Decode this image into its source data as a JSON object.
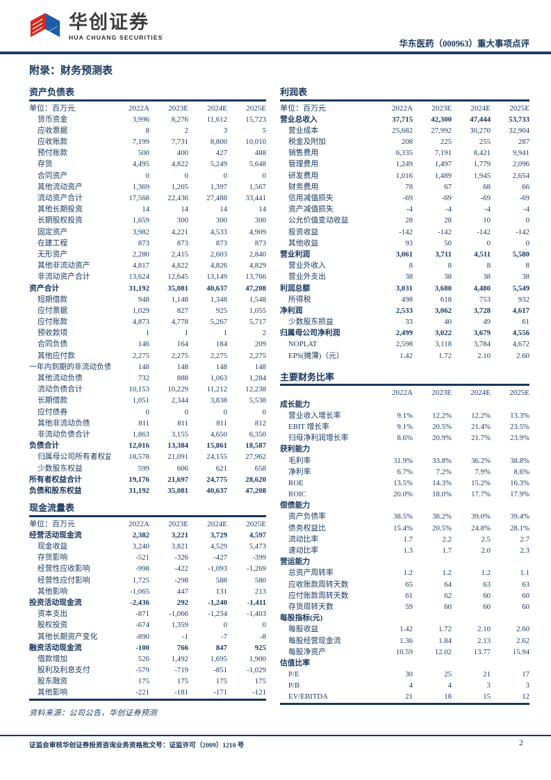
{
  "header": {
    "logo_cn": "华创证券",
    "logo_en": "HUA CHUANG SECURITIES",
    "report_title": "华东医药（000963）重大事项点评"
  },
  "page_title": "附录：财务预测表",
  "colors": {
    "navy": "#17365D",
    "logo_red": "#D7281E",
    "logo_blue": "#1C5CA8"
  },
  "tables": {
    "balance_sheet": {
      "title": "资产负债表",
      "unit_label": "单位：百万元",
      "columns": [
        "2022A",
        "2023E",
        "2024E",
        "2025E"
      ],
      "rows": [
        {
          "label": "货币资金",
          "values": [
            "3,996",
            "8,276",
            "11,612",
            "15,723"
          ]
        },
        {
          "label": "应收票据",
          "values": [
            "8",
            "2",
            "3",
            "5"
          ]
        },
        {
          "label": "应收账款",
          "values": [
            "7,199",
            "7,731",
            "8,800",
            "10,010"
          ]
        },
        {
          "label": "预付账款",
          "values": [
            "500",
            "400",
            "427",
            "488"
          ]
        },
        {
          "label": "存货",
          "values": [
            "4,495",
            "4,822",
            "5,249",
            "5,648"
          ]
        },
        {
          "label": "合同资产",
          "values": [
            "0",
            "0",
            "0",
            "0"
          ]
        },
        {
          "label": "其他流动资产",
          "values": [
            "1,369",
            "1,205",
            "1,397",
            "1,567"
          ]
        },
        {
          "label": "流动资产合计",
          "values": [
            "17,568",
            "22,436",
            "27,488",
            "33,441"
          ]
        },
        {
          "label": "其他长期投资",
          "values": [
            "14",
            "14",
            "14",
            "14"
          ]
        },
        {
          "label": "长期股权投资",
          "values": [
            "1,659",
            "300",
            "300",
            "300"
          ]
        },
        {
          "label": "固定资产",
          "values": [
            "3,982",
            "4,221",
            "4,533",
            "4,909"
          ]
        },
        {
          "label": "在建工程",
          "values": [
            "873",
            "873",
            "873",
            "873"
          ]
        },
        {
          "label": "无形资产",
          "values": [
            "2,280",
            "2,415",
            "2,603",
            "2,840"
          ]
        },
        {
          "label": "其他非流动资产",
          "values": [
            "4,817",
            "4,822",
            "4,826",
            "4,829"
          ]
        },
        {
          "label": "非流动资产合计",
          "values": [
            "13,624",
            "12,645",
            "13,149",
            "13,766"
          ]
        },
        {
          "label": "资产合计",
          "bold": true,
          "flush": true,
          "values": [
            "31,192",
            "35,081",
            "40,637",
            "47,208"
          ]
        },
        {
          "label": "短期借款",
          "values": [
            "948",
            "1,148",
            "1,348",
            "1,548"
          ]
        },
        {
          "label": "应付票据",
          "values": [
            "1,029",
            "827",
            "925",
            "1,055"
          ]
        },
        {
          "label": "应付账款",
          "values": [
            "4,873",
            "4,778",
            "5,267",
            "5,717"
          ]
        },
        {
          "label": "预收款项",
          "values": [
            "1",
            "1",
            "1",
            "2"
          ]
        },
        {
          "label": "合同负债",
          "values": [
            "146",
            "164",
            "184",
            "209"
          ]
        },
        {
          "label": "其他应付款",
          "values": [
            "2,275",
            "2,275",
            "2,275",
            "2,275"
          ]
        },
        {
          "label": "一年内到期的非流动负债",
          "flush": true,
          "values": [
            "148",
            "148",
            "148",
            "148"
          ]
        },
        {
          "label": "其他流动负债",
          "values": [
            "732",
            "888",
            "1,063",
            "1,284"
          ]
        },
        {
          "label": "流动负债合计",
          "values": [
            "10,153",
            "10,229",
            "11,212",
            "12,238"
          ]
        },
        {
          "label": "长期借款",
          "values": [
            "1,051",
            "2,344",
            "3,838",
            "5,538"
          ]
        },
        {
          "label": "应付债券",
          "values": [
            "0",
            "0",
            "0",
            "0"
          ]
        },
        {
          "label": "其他非流动负债",
          "values": [
            "811",
            "811",
            "811",
            "812"
          ]
        },
        {
          "label": "非流动负债合计",
          "values": [
            "1,863",
            "3,155",
            "4,650",
            "6,350"
          ]
        },
        {
          "label": "负债合计",
          "bold": true,
          "flush": true,
          "values": [
            "12,016",
            "13,384",
            "15,861",
            "18,587"
          ]
        },
        {
          "label": "归属母公司所有者权益",
          "values": [
            "18,578",
            "21,091",
            "24,155",
            "27,962"
          ]
        },
        {
          "label": "少数股东权益",
          "values": [
            "599",
            "606",
            "621",
            "658"
          ]
        },
        {
          "label": "所有者权益合计",
          "bold": true,
          "flush": true,
          "values": [
            "19,176",
            "21,697",
            "24,775",
            "28,620"
          ]
        },
        {
          "label": "负债和股东权益",
          "bold": true,
          "flush": true,
          "values": [
            "31,192",
            "35,081",
            "40,637",
            "47,208"
          ]
        }
      ]
    },
    "income_statement": {
      "title": "利润表",
      "unit_label": "单位：百万元",
      "columns": [
        "2022A",
        "2023E",
        "2024E",
        "2025E"
      ],
      "rows": [
        {
          "label": "营业总收入",
          "bold": true,
          "flush": true,
          "values": [
            "37,715",
            "42,300",
            "47,444",
            "53,733"
          ]
        },
        {
          "label": "营业成本",
          "values": [
            "25,682",
            "27,992",
            "30,270",
            "32,904"
          ]
        },
        {
          "label": "税金及附加",
          "values": [
            "208",
            "225",
            "255",
            "287"
          ]
        },
        {
          "label": "销售费用",
          "values": [
            "6,335",
            "7,191",
            "8,421",
            "9,941"
          ]
        },
        {
          "label": "管理费用",
          "values": [
            "1,249",
            "1,497",
            "1,779",
            "2,096"
          ]
        },
        {
          "label": "研发费用",
          "values": [
            "1,016",
            "1,489",
            "1,945",
            "2,654"
          ]
        },
        {
          "label": "财务费用",
          "values": [
            "78",
            "67",
            "68",
            "66"
          ]
        },
        {
          "label": "信用减值损失",
          "values": [
            "-69",
            "-69",
            "-69",
            "-69"
          ]
        },
        {
          "label": "资产减值损失",
          "values": [
            "-4",
            "-4",
            "-4",
            "-4"
          ]
        },
        {
          "label": "公允价值变动收益",
          "values": [
            "28",
            "28",
            "10",
            "0"
          ]
        },
        {
          "label": "投资收益",
          "values": [
            "-142",
            "-142",
            "-142",
            "-142"
          ]
        },
        {
          "label": "其他收益",
          "values": [
            "93",
            "50",
            "0",
            "0"
          ]
        },
        {
          "label": "营业利润",
          "bold": true,
          "flush": true,
          "values": [
            "3,061",
            "3,711",
            "4,511",
            "5,580"
          ]
        },
        {
          "label": "营业外收入",
          "values": [
            "8",
            "8",
            "8",
            "8"
          ]
        },
        {
          "label": "营业外支出",
          "values": [
            "38",
            "38",
            "38",
            "38"
          ]
        },
        {
          "label": "利润总额",
          "bold": true,
          "flush": true,
          "values": [
            "3,031",
            "3,680",
            "4,480",
            "5,549"
          ]
        },
        {
          "label": "所得税",
          "values": [
            "498",
            "618",
            "753",
            "932"
          ]
        },
        {
          "label": "净利润",
          "bold": true,
          "flush": true,
          "values": [
            "2,533",
            "3,062",
            "3,728",
            "4,617"
          ]
        },
        {
          "label": "少数股东损益",
          "values": [
            "33",
            "40",
            "49",
            "61"
          ]
        },
        {
          "label": "归属母公司净利润",
          "bold": true,
          "flush": true,
          "values": [
            "2,499",
            "3,022",
            "3,679",
            "4,556"
          ]
        },
        {
          "label": "NOPLAT",
          "values": [
            "2,598",
            "3,118",
            "3,784",
            "4,672"
          ]
        },
        {
          "label": "EPS(摊薄)（元）",
          "values": [
            "1.42",
            "1.72",
            "2.10",
            "2.60"
          ]
        }
      ]
    },
    "cash_flow": {
      "title": "现金流量表",
      "unit_label": "单位：百万元",
      "columns": [
        "2022A",
        "2023E",
        "2024E",
        "2025E"
      ],
      "rows": [
        {
          "label": "经营活动现金流",
          "bold": true,
          "flush": true,
          "values": [
            "2,382",
            "3,221",
            "3,729",
            "4,597"
          ]
        },
        {
          "label": "现金收益",
          "values": [
            "3,240",
            "3,821",
            "4,529",
            "5,473"
          ]
        },
        {
          "label": "存货影响",
          "values": [
            "-521",
            "-326",
            "-427",
            "-399"
          ]
        },
        {
          "label": "经营性应收影响",
          "values": [
            "-998",
            "-422",
            "-1,093",
            "-1,269"
          ]
        },
        {
          "label": "经营性应付影响",
          "values": [
            "1,725",
            "-298",
            "588",
            "580"
          ]
        },
        {
          "label": "其他影响",
          "values": [
            "-1,065",
            "447",
            "131",
            "213"
          ]
        },
        {
          "label": "投资活动现金流",
          "bold": true,
          "flush": true,
          "values": [
            "-2,436",
            "292",
            "-1,240",
            "-1,411"
          ]
        },
        {
          "label": "资本支出",
          "values": [
            "-871",
            "-1,066",
            "-1,234",
            "-1,403"
          ]
        },
        {
          "label": "股权投资",
          "values": [
            "-674",
            "1,359",
            "0",
            "0"
          ]
        },
        {
          "label": "其他长期资产变化",
          "values": [
            "-890",
            "-1",
            "-7",
            "-8"
          ]
        },
        {
          "label": "融资活动现金流",
          "bold": true,
          "flush": true,
          "values": [
            "-100",
            "766",
            "847",
            "925"
          ]
        },
        {
          "label": "借款增加",
          "values": [
            "526",
            "1,492",
            "1,695",
            "1,900"
          ]
        },
        {
          "label": "股利及利息支付",
          "values": [
            "-579",
            "-719",
            "-851",
            "-1,029"
          ]
        },
        {
          "label": "股东融资",
          "values": [
            "175",
            "175",
            "175",
            "175"
          ]
        },
        {
          "label": "其他影响",
          "values": [
            "-221",
            "-181",
            "-171",
            "-121"
          ]
        }
      ]
    },
    "ratios": {
      "title": "主要财务比率",
      "unit_label": "",
      "columns": [
        "2022A",
        "2023E",
        "2024E",
        "2025E"
      ],
      "rows": [
        {
          "label": "成长能力",
          "bold": true,
          "flush": true,
          "values": []
        },
        {
          "label": "营业收入增长率",
          "values": [
            "9.1%",
            "12.2%",
            "12.2%",
            "13.3%"
          ]
        },
        {
          "label": "EBIT 增长率",
          "values": [
            "9.1%",
            "20.5%",
            "21.4%",
            "23.5%"
          ]
        },
        {
          "label": "归母净利润增长率",
          "values": [
            "8.6%",
            "20.9%",
            "21.7%",
            "23.9%"
          ]
        },
        {
          "label": "获利能力",
          "bold": true,
          "flush": true,
          "values": []
        },
        {
          "label": "毛利率",
          "values": [
            "31.9%",
            "33.8%",
            "36.2%",
            "38.8%"
          ]
        },
        {
          "label": "净利率",
          "values": [
            "6.7%",
            "7.2%",
            "7.9%",
            "8.6%"
          ]
        },
        {
          "label": "ROE",
          "values": [
            "13.5%",
            "14.3%",
            "15.2%",
            "16.3%"
          ]
        },
        {
          "label": "ROIC",
          "values": [
            "20.0%",
            "18.0%",
            "17.7%",
            "17.9%"
          ]
        },
        {
          "label": "偿债能力",
          "bold": true,
          "flush": true,
          "values": []
        },
        {
          "label": "资产负债率",
          "values": [
            "38.5%",
            "38.2%",
            "39.0%",
            "39.4%"
          ]
        },
        {
          "label": "债务权益比",
          "values": [
            "15.4%",
            "20.5%",
            "24.8%",
            "28.1%"
          ]
        },
        {
          "label": "流动比率",
          "values": [
            "1.7",
            "2.2",
            "2.5",
            "2.7"
          ]
        },
        {
          "label": "速动比率",
          "values": [
            "1.3",
            "1.7",
            "2.0",
            "2.3"
          ]
        },
        {
          "label": "营运能力",
          "bold": true,
          "flush": true,
          "values": []
        },
        {
          "label": "总资产周转率",
          "values": [
            "1.2",
            "1.2",
            "1.2",
            "1.1"
          ]
        },
        {
          "label": "应收账款周转天数",
          "values": [
            "65",
            "64",
            "63",
            "63"
          ]
        },
        {
          "label": "应付账款周转天数",
          "values": [
            "61",
            "62",
            "60",
            "60"
          ]
        },
        {
          "label": "存货周转天数",
          "values": [
            "59",
            "60",
            "60",
            "60"
          ]
        },
        {
          "label": "每股指标(元)",
          "bold": true,
          "flush": true,
          "values": []
        },
        {
          "label": "每股收益",
          "values": [
            "1.42",
            "1.72",
            "2.10",
            "2.60"
          ]
        },
        {
          "label": "每股经营现金流",
          "values": [
            "1.36",
            "1.84",
            "2.13",
            "2.62"
          ]
        },
        {
          "label": "每股净资产",
          "values": [
            "10.59",
            "12.02",
            "13.77",
            "15.94"
          ]
        },
        {
          "label": "估值比率",
          "bold": true,
          "flush": true,
          "values": []
        },
        {
          "label": "P/E",
          "values": [
            "30",
            "25",
            "21",
            "17"
          ]
        },
        {
          "label": "P/B",
          "values": [
            "4",
            "4",
            "3",
            "3"
          ]
        },
        {
          "label": "EV/EBITDA",
          "values": [
            "21",
            "18",
            "15",
            "12"
          ]
        }
      ]
    }
  },
  "source_note": "资料来源：公司公告，华创证券预测",
  "footer": {
    "license": "证监会审核华创证券投资咨询业务资格批文号：证监许可（2009）1210 号",
    "page_number": "2"
  }
}
